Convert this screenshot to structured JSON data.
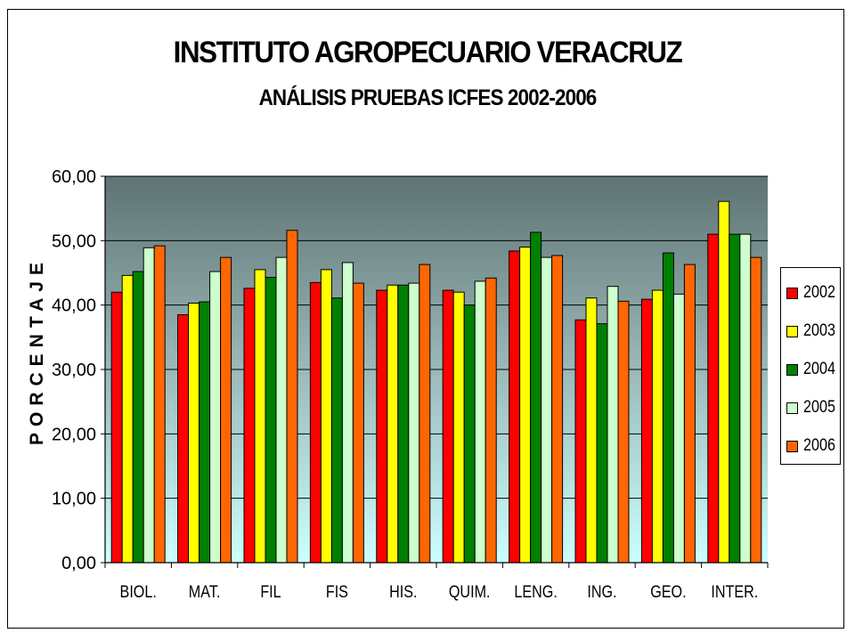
{
  "chart_data": {
    "type": "bar",
    "title": "INSTITUTO AGROPECUARIO VERACRUZ",
    "subtitle": "ANÁLISIS PRUEBAS ICFES 2002-2006",
    "ylabel": "PORCENTAJE",
    "xlabel": "",
    "ylim": [
      0,
      60
    ],
    "yticks": [
      "0,00",
      "10,00",
      "20,00",
      "30,00",
      "40,00",
      "50,00",
      "60,00"
    ],
    "grid": true,
    "legend_position": "right",
    "categories": [
      "BIOL.",
      "MAT.",
      "FIL",
      "FIS",
      "HIS.",
      "QUIM.",
      "LENG.",
      "ING.",
      "GEO.",
      "INTER."
    ],
    "series": [
      {
        "name": "2002",
        "color": "#ff0000",
        "values": [
          42.0,
          38.5,
          42.6,
          43.5,
          42.3,
          42.3,
          48.4,
          37.7,
          40.9,
          51.0
        ]
      },
      {
        "name": "2003",
        "color": "#ffff00",
        "values": [
          44.6,
          40.3,
          45.5,
          45.5,
          43.1,
          42.0,
          49.0,
          41.1,
          42.3,
          56.1
        ]
      },
      {
        "name": "2004",
        "color": "#008000",
        "values": [
          45.2,
          40.5,
          44.3,
          41.1,
          43.1,
          40.0,
          51.3,
          37.1,
          48.1,
          51.0
        ]
      },
      {
        "name": "2005",
        "color": "#ccffcc",
        "values": [
          48.9,
          45.2,
          47.4,
          46.6,
          43.4,
          43.7,
          47.4,
          42.9,
          41.7,
          51.0
        ]
      },
      {
        "name": "2006",
        "color": "#ff6600",
        "values": [
          49.2,
          47.4,
          51.6,
          43.4,
          46.3,
          44.2,
          47.7,
          40.6,
          46.3,
          47.4
        ]
      }
    ]
  }
}
